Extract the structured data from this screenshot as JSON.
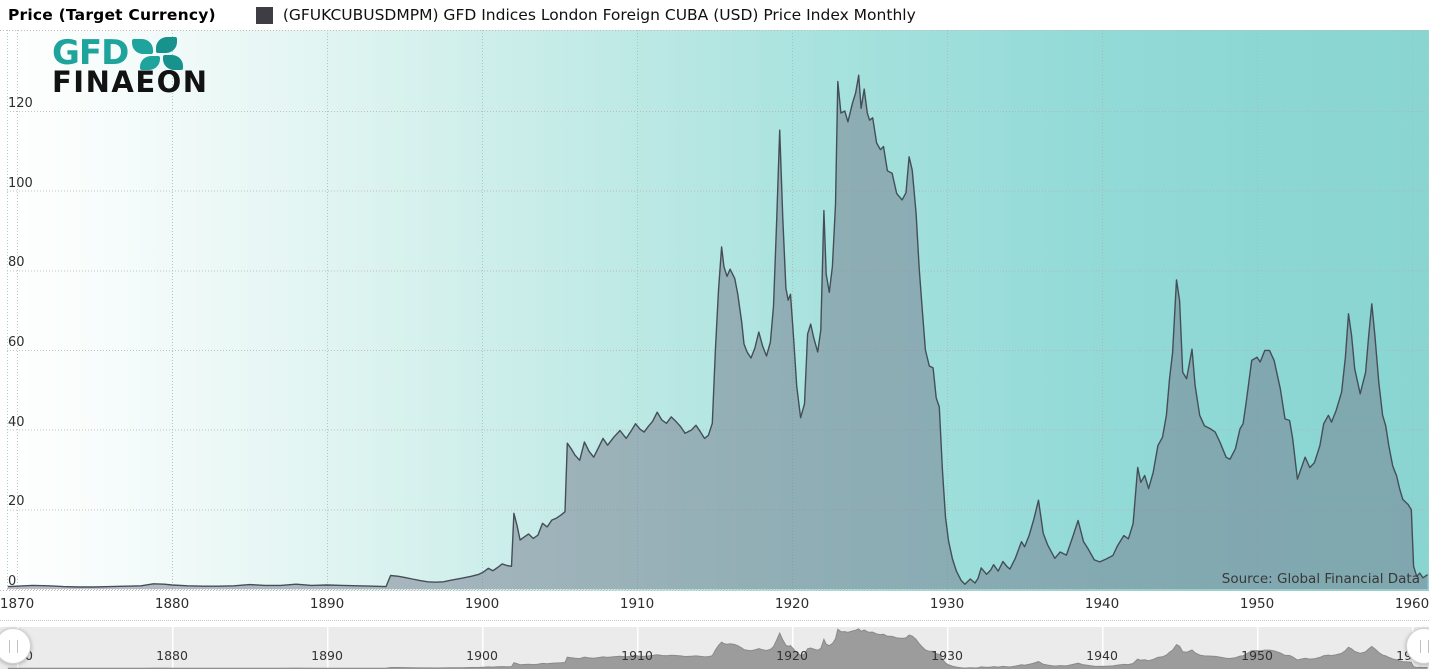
{
  "header": {
    "title": "Price (Target Currency)",
    "legend": {
      "marker_color": "#3d3d43",
      "label": "(GFUKCUBUSDMPM) GFD Indices London Foreign CUBA (USD) Price Index Monthly"
    }
  },
  "logo": {
    "gfd": "GFD",
    "finaeon": "FINAEON"
  },
  "colors": {
    "plot_gradient_left": "#ffffff",
    "plot_gradient_right": "#8ad5d2",
    "area_fill": "rgba(118,122,140,0.5)",
    "area_line": "#454e57",
    "grid_horizontal": "#b9aeae",
    "grid_vertical": "#9fbdbb",
    "navigator_bg": "#ebebeb",
    "navigator_fill": "#9c9c9c",
    "navigator_line": "#8a8a8a",
    "axis_label": "#2e2e2e"
  },
  "chart_data": {
    "type": "area",
    "title": "",
    "xlabel": "",
    "ylabel": "",
    "x_ticks": [
      1870,
      1880,
      1890,
      1900,
      1910,
      1920,
      1930,
      1940,
      1950,
      1960
    ],
    "y_ticks": [
      0,
      20,
      40,
      60,
      80,
      100,
      120
    ],
    "x_range": [
      1869.35,
      1961.1
    ],
    "y_range": [
      0,
      132
    ],
    "grid": "dotted",
    "legend_position": "top",
    "source": "Source: Global Financial Data",
    "series": [
      {
        "name": "(GFUKCUBUSDMPM) GFD Indices London Foreign CUBA (USD) Price Index Monthly",
        "points": [
          [
            1869.4,
            0.6
          ],
          [
            1870,
            0.7
          ],
          [
            1871,
            0.9
          ],
          [
            1872,
            0.8
          ],
          [
            1873,
            0.6
          ],
          [
            1874,
            0.5
          ],
          [
            1875,
            0.5
          ],
          [
            1876,
            0.6
          ],
          [
            1877,
            0.7
          ],
          [
            1878,
            0.8
          ],
          [
            1878.8,
            1.3
          ],
          [
            1879.5,
            1.2
          ],
          [
            1880,
            1.0
          ],
          [
            1881,
            0.8
          ],
          [
            1882,
            0.7
          ],
          [
            1883,
            0.7
          ],
          [
            1884,
            0.8
          ],
          [
            1885,
            1.1
          ],
          [
            1886,
            0.9
          ],
          [
            1887,
            0.9
          ],
          [
            1888,
            1.2
          ],
          [
            1889,
            0.9
          ],
          [
            1890,
            1.0
          ],
          [
            1891,
            0.9
          ],
          [
            1892,
            0.8
          ],
          [
            1893,
            0.7
          ],
          [
            1893.8,
            0.6
          ],
          [
            1894.1,
            3.4
          ],
          [
            1894.6,
            3.2
          ],
          [
            1895,
            2.9
          ],
          [
            1895.5,
            2.5
          ],
          [
            1896,
            2.1
          ],
          [
            1896.5,
            1.8
          ],
          [
            1897,
            1.7
          ],
          [
            1897.5,
            1.8
          ],
          [
            1898,
            2.2
          ],
          [
            1898.7,
            2.7
          ],
          [
            1899.3,
            3.2
          ],
          [
            1899.8,
            3.7
          ],
          [
            1900.1,
            4.3
          ],
          [
            1900.4,
            5.2
          ],
          [
            1900.7,
            4.6
          ],
          [
            1901,
            5.4
          ],
          [
            1901.3,
            6.3
          ],
          [
            1901.6,
            5.9
          ],
          [
            1901.9,
            5.7
          ],
          [
            1902.05,
            19.0
          ],
          [
            1902.25,
            16.0
          ],
          [
            1902.45,
            12.3
          ],
          [
            1902.7,
            13.0
          ],
          [
            1903,
            13.8
          ],
          [
            1903.3,
            12.7
          ],
          [
            1903.6,
            13.5
          ],
          [
            1903.9,
            16.5
          ],
          [
            1904.2,
            15.6
          ],
          [
            1904.5,
            17.3
          ],
          [
            1904.8,
            17.8
          ],
          [
            1905.1,
            18.6
          ],
          [
            1905.35,
            19.4
          ],
          [
            1905.5,
            36.6
          ],
          [
            1905.75,
            35.2
          ],
          [
            1906,
            33.6
          ],
          [
            1906.3,
            32.3
          ],
          [
            1906.6,
            36.9
          ],
          [
            1906.9,
            34.6
          ],
          [
            1907.2,
            33.1
          ],
          [
            1907.5,
            35.4
          ],
          [
            1907.8,
            37.8
          ],
          [
            1908.1,
            36.1
          ],
          [
            1908.5,
            38.1
          ],
          [
            1908.9,
            39.8
          ],
          [
            1909.3,
            37.8
          ],
          [
            1909.6,
            39.6
          ],
          [
            1909.9,
            41.5
          ],
          [
            1910.2,
            40.1
          ],
          [
            1910.45,
            39.4
          ],
          [
            1910.7,
            40.7
          ],
          [
            1911,
            42.1
          ],
          [
            1911.3,
            44.4
          ],
          [
            1911.6,
            42.4
          ],
          [
            1911.9,
            41.6
          ],
          [
            1912.2,
            43.2
          ],
          [
            1912.5,
            42.1
          ],
          [
            1912.8,
            40.8
          ],
          [
            1913.1,
            39.1
          ],
          [
            1913.5,
            39.9
          ],
          [
            1913.8,
            41.1
          ],
          [
            1914.1,
            39.4
          ],
          [
            1914.35,
            37.8
          ],
          [
            1914.6,
            38.6
          ],
          [
            1914.85,
            41.6
          ],
          [
            1915.05,
            60.0
          ],
          [
            1915.25,
            75.0
          ],
          [
            1915.45,
            85.9
          ],
          [
            1915.6,
            81.0
          ],
          [
            1915.8,
            78.5
          ],
          [
            1916,
            80.3
          ],
          [
            1916.3,
            78.0
          ],
          [
            1916.5,
            74.0
          ],
          [
            1916.75,
            67.0
          ],
          [
            1916.9,
            61.5
          ],
          [
            1917.1,
            59.5
          ],
          [
            1917.35,
            58.0
          ],
          [
            1917.6,
            60.5
          ],
          [
            1917.85,
            64.5
          ],
          [
            1918.1,
            61.0
          ],
          [
            1918.35,
            58.5
          ],
          [
            1918.6,
            62.0
          ],
          [
            1918.8,
            71.0
          ],
          [
            1919.0,
            92.0
          ],
          [
            1919.2,
            115.2
          ],
          [
            1919.4,
            93.0
          ],
          [
            1919.6,
            75.5
          ],
          [
            1919.75,
            72.5
          ],
          [
            1919.9,
            74.0
          ],
          [
            1920.1,
            63.0
          ],
          [
            1920.3,
            51.0
          ],
          [
            1920.55,
            43.0
          ],
          [
            1920.8,
            46.5
          ],
          [
            1921,
            64.0
          ],
          [
            1921.2,
            66.5
          ],
          [
            1921.4,
            63.0
          ],
          [
            1921.65,
            59.5
          ],
          [
            1921.85,
            65.0
          ],
          [
            1922.05,
            95.0
          ],
          [
            1922.2,
            79.0
          ],
          [
            1922.4,
            74.5
          ],
          [
            1922.6,
            81.0
          ],
          [
            1922.8,
            96.5
          ],
          [
            1922.95,
            127.4
          ],
          [
            1923.15,
            119.5
          ],
          [
            1923.4,
            120.0
          ],
          [
            1923.6,
            117.3
          ],
          [
            1923.9,
            122.0
          ],
          [
            1924.1,
            124.5
          ],
          [
            1924.3,
            129.0
          ],
          [
            1924.45,
            120.7
          ],
          [
            1924.65,
            125.5
          ],
          [
            1924.85,
            119.5
          ],
          [
            1925,
            117.7
          ],
          [
            1925.2,
            118.3
          ],
          [
            1925.45,
            112.0
          ],
          [
            1925.7,
            110.3
          ],
          [
            1925.9,
            111.1
          ],
          [
            1926.15,
            105.0
          ],
          [
            1926.45,
            104.4
          ],
          [
            1926.75,
            99.3
          ],
          [
            1927.1,
            97.7
          ],
          [
            1927.35,
            99.5
          ],
          [
            1927.55,
            108.5
          ],
          [
            1927.75,
            105.2
          ],
          [
            1928,
            94.3
          ],
          [
            1928.2,
            80.5
          ],
          [
            1928.4,
            70.0
          ],
          [
            1928.6,
            60.0
          ],
          [
            1928.85,
            56.0
          ],
          [
            1929.1,
            55.5
          ],
          [
            1929.3,
            48.0
          ],
          [
            1929.5,
            45.7
          ],
          [
            1929.7,
            30.0
          ],
          [
            1929.9,
            18.0
          ],
          [
            1930.1,
            12.0
          ],
          [
            1930.35,
            7.5
          ],
          [
            1930.6,
            4.5
          ],
          [
            1930.9,
            2.2
          ],
          [
            1931.15,
            1.2
          ],
          [
            1931.5,
            2.5
          ],
          [
            1931.8,
            1.5
          ],
          [
            1932,
            2.7
          ],
          [
            1932.2,
            5.3
          ],
          [
            1932.55,
            3.7
          ],
          [
            1932.8,
            4.7
          ],
          [
            1933,
            6.1
          ],
          [
            1933.3,
            4.5
          ],
          [
            1933.6,
            6.9
          ],
          [
            1933.85,
            5.7
          ],
          [
            1934.05,
            5.0
          ],
          [
            1934.4,
            7.7
          ],
          [
            1934.8,
            11.9
          ],
          [
            1935,
            10.6
          ],
          [
            1935.3,
            13.5
          ],
          [
            1935.6,
            17.6
          ],
          [
            1935.9,
            22.3
          ],
          [
            1936.2,
            14.0
          ],
          [
            1936.5,
            11.0
          ],
          [
            1936.95,
            7.7
          ],
          [
            1937.3,
            9.3
          ],
          [
            1937.7,
            8.5
          ],
          [
            1938.1,
            13.0
          ],
          [
            1938.45,
            17.2
          ],
          [
            1938.8,
            11.9
          ],
          [
            1939.1,
            10.1
          ],
          [
            1939.5,
            7.3
          ],
          [
            1939.85,
            6.8
          ],
          [
            1940.3,
            7.6
          ],
          [
            1940.7,
            8.4
          ],
          [
            1941,
            10.9
          ],
          [
            1941.4,
            13.4
          ],
          [
            1941.7,
            12.6
          ],
          [
            1942,
            16.4
          ],
          [
            1942.3,
            30.5
          ],
          [
            1942.5,
            26.8
          ],
          [
            1942.75,
            28.5
          ],
          [
            1943,
            25.2
          ],
          [
            1943.3,
            29.3
          ],
          [
            1943.6,
            36.0
          ],
          [
            1943.9,
            38.1
          ],
          [
            1944.15,
            43.6
          ],
          [
            1944.35,
            52.7
          ],
          [
            1944.55,
            59.4
          ],
          [
            1944.8,
            77.6
          ],
          [
            1945,
            72.4
          ],
          [
            1945.2,
            54.4
          ],
          [
            1945.45,
            52.8
          ],
          [
            1945.8,
            60.2
          ],
          [
            1946,
            51.1
          ],
          [
            1946.3,
            43.6
          ],
          [
            1946.6,
            41.0
          ],
          [
            1947,
            40.2
          ],
          [
            1947.3,
            39.4
          ],
          [
            1947.6,
            36.9
          ],
          [
            1948,
            33.1
          ],
          [
            1948.25,
            32.6
          ],
          [
            1948.6,
            35.2
          ],
          [
            1948.9,
            40.2
          ],
          [
            1949.1,
            41.5
          ],
          [
            1949.3,
            46.9
          ],
          [
            1949.65,
            57.4
          ],
          [
            1950,
            58.2
          ],
          [
            1950.2,
            57.0
          ],
          [
            1950.5,
            59.9
          ],
          [
            1950.8,
            59.9
          ],
          [
            1951.1,
            57.4
          ],
          [
            1951.5,
            50.3
          ],
          [
            1951.8,
            42.7
          ],
          [
            1952.1,
            42.3
          ],
          [
            1952.3,
            37.7
          ],
          [
            1952.6,
            27.6
          ],
          [
            1953.1,
            33.1
          ],
          [
            1953.4,
            30.5
          ],
          [
            1953.7,
            31.7
          ],
          [
            1954.05,
            36.0
          ],
          [
            1954.3,
            41.5
          ],
          [
            1954.6,
            43.6
          ],
          [
            1954.8,
            41.9
          ],
          [
            1955.1,
            44.8
          ],
          [
            1955.45,
            49.4
          ],
          [
            1955.7,
            58.2
          ],
          [
            1955.9,
            69.1
          ],
          [
            1956.1,
            63.6
          ],
          [
            1956.3,
            55.3
          ],
          [
            1956.65,
            49.0
          ],
          [
            1957,
            54.4
          ],
          [
            1957.2,
            63.6
          ],
          [
            1957.4,
            71.6
          ],
          [
            1957.6,
            63.6
          ],
          [
            1957.85,
            51.9
          ],
          [
            1958.1,
            43.6
          ],
          [
            1958.3,
            41.0
          ],
          [
            1958.5,
            36.0
          ],
          [
            1958.75,
            30.9
          ],
          [
            1959,
            28.4
          ],
          [
            1959.2,
            25.1
          ],
          [
            1959.4,
            22.5
          ],
          [
            1959.75,
            21.2
          ],
          [
            1959.95,
            19.9
          ],
          [
            1960.1,
            5.7
          ],
          [
            1960.3,
            3.2
          ],
          [
            1960.5,
            4.0
          ],
          [
            1960.7,
            2.8
          ],
          [
            1961,
            3.6
          ]
        ]
      }
    ]
  },
  "navigator": {
    "labels": [
      "1870",
      "1880",
      "1890",
      "1900",
      "1910",
      "1920",
      "1930",
      "1940",
      "1950",
      "1960"
    ],
    "label_years": [
      1870,
      1880,
      1890,
      1900,
      1910,
      1920,
      1930,
      1940,
      1950,
      1960
    ]
  }
}
